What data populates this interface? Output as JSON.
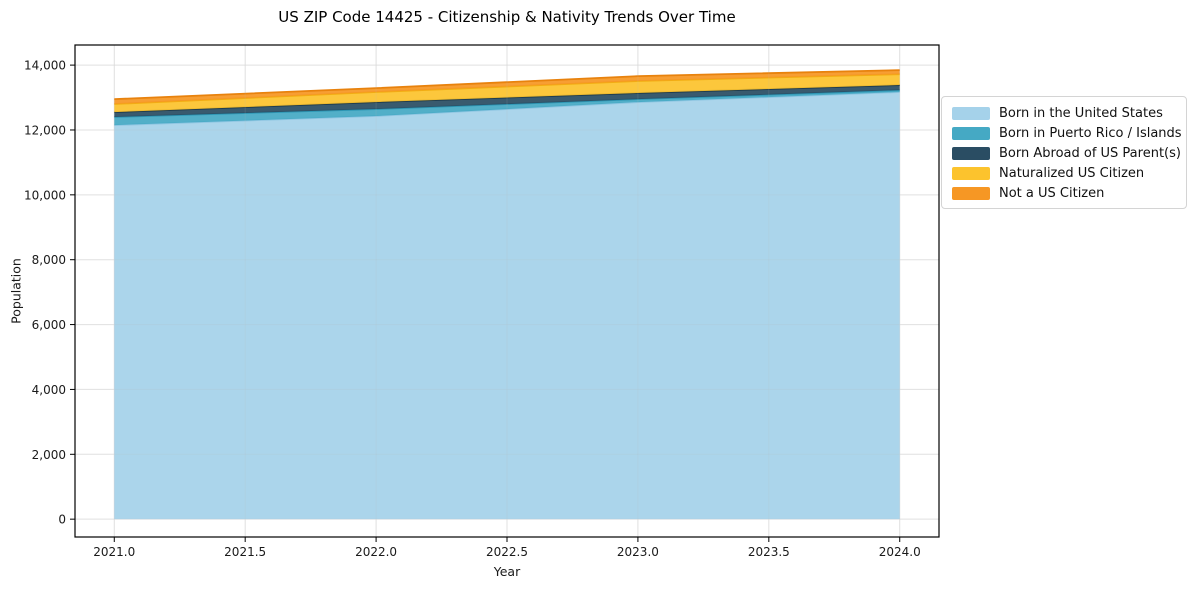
{
  "chart_data": {
    "type": "area",
    "stacked": true,
    "title": "US ZIP Code 14425 - Citizenship & Nativity Trends Over Time",
    "xlabel": "Year",
    "ylabel": "Population",
    "grid": true,
    "legend_position": "right-outside",
    "xlim": [
      2020.85,
      2024.15
    ],
    "ylim": [
      -550,
      14620
    ],
    "x": [
      2021,
      2022,
      2023,
      2024
    ],
    "series": [
      {
        "name": "Born in the United States",
        "color": "#a5d2ea",
        "edge": "#8fc6e2",
        "values": [
          12150,
          12430,
          12860,
          13170
        ]
      },
      {
        "name": "Born in Puerto Rico / Islands",
        "color": "#45a9c4",
        "edge": "#2d97b5",
        "values": [
          250,
          215,
          90,
          60
        ]
      },
      {
        "name": "Born Abroad of US Parent(s)",
        "color": "#2a4d63",
        "edge": "#1d3a4c",
        "values": [
          150,
          215,
          190,
          155
        ]
      },
      {
        "name": "Naturalized US Citizen",
        "color": "#fcc32d",
        "edge": "#f2ad12",
        "values": [
          250,
          310,
          370,
          335
        ]
      },
      {
        "name": "Not a US Citizen",
        "color": "#f69724",
        "edge": "#e8820d",
        "values": [
          150,
          120,
          150,
          125
        ]
      }
    ],
    "stack_totals": [
      12950,
      13290,
      13660,
      13845
    ],
    "x_axis": {
      "tick_values": [
        2021.0,
        2021.5,
        2022.0,
        2022.5,
        2023.0,
        2023.5,
        2024.0
      ],
      "tick_labels": [
        "2021.0",
        "2021.5",
        "2022.0",
        "2022.5",
        "2023.0",
        "2023.5",
        "2024.0"
      ]
    },
    "y_axis": {
      "tick_values": [
        0,
        2000,
        4000,
        6000,
        8000,
        10000,
        12000,
        14000
      ],
      "tick_labels": [
        "0",
        "2,000",
        "4,000",
        "6,000",
        "8,000",
        "10,000",
        "12,000",
        "14,000"
      ]
    },
    "colors": {
      "grid": "#e7e7e7",
      "frame": "#000000",
      "tick_text": "#1a1a1a",
      "background": "#ffffff"
    }
  }
}
